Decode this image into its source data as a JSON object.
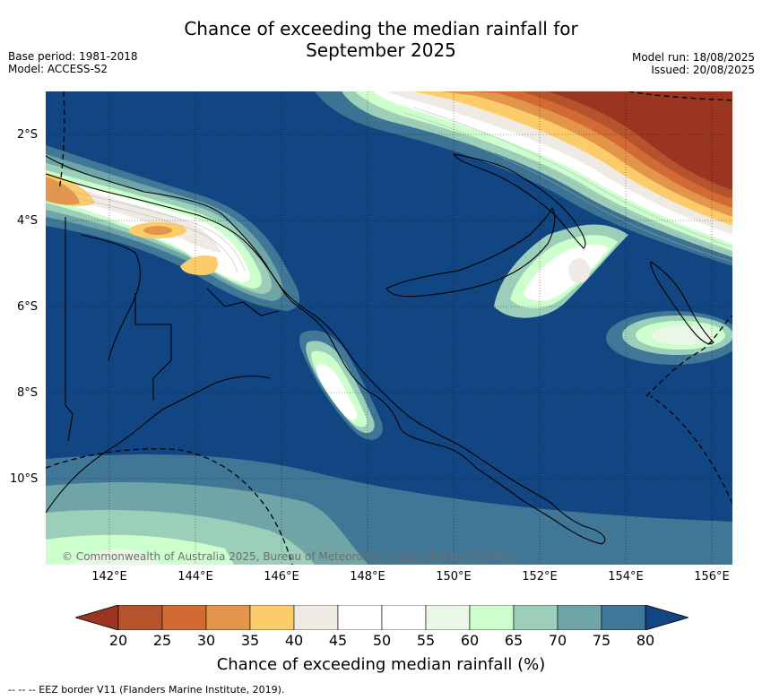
{
  "header": {
    "title_line1": "Chance of exceeding the median rainfall for",
    "title_line2": "September 2025",
    "base_period": "Base period: 1981-2018",
    "model": "Model: ACCESS-S2",
    "model_run": "Model run: 18/08/2025",
    "issued": "Issued: 20/08/2025"
  },
  "map": {
    "lat_labels": [
      "2°S",
      "4°S",
      "6°S",
      "8°S",
      "10°S"
    ],
    "lon_labels": [
      "142°E",
      "144°E",
      "146°E",
      "148°E",
      "150°E",
      "152°E",
      "154°E",
      "156°E"
    ],
    "copyright": "© Commonwealth of Australia 2025, Bureau of Meteorology, supported by COSPPac",
    "colors": {
      "c20": "#9a3522",
      "c25": "#b5532c",
      "c30": "#d16b33",
      "c35": "#e4954c",
      "c40": "#fccc6a",
      "c45": "#efebe4",
      "c50": "#ffffff",
      "c55": "#ffffff",
      "c60": "#ebf7e6",
      "c65": "#ccffcc",
      "c70": "#9ccfb9",
      "c75": "#6fa5a6",
      "c80": "#417796",
      "c85": "#114683"
    }
  },
  "colorbar": {
    "ticks": [
      "20",
      "25",
      "30",
      "35",
      "40",
      "45",
      "50",
      "55",
      "60",
      "65",
      "70",
      "75",
      "80"
    ],
    "label": "Chance of exceeding median rainfall (%)"
  },
  "footnote": "--  --  -- EEZ border V11 (Flanders Marine Institute, 2019)."
}
